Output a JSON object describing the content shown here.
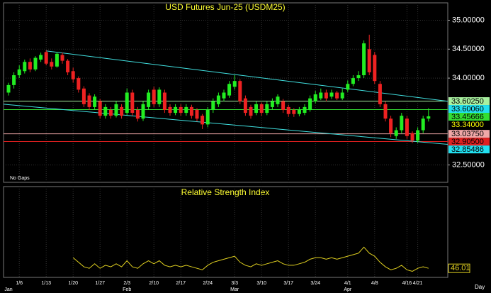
{
  "chart_data": {
    "type": "candlestick",
    "title": "USD Futures Jun-25 (USDM25)",
    "note": "No Gaps",
    "x_unit": "Day",
    "categories": [
      null,
      null,
      "1/6",
      null,
      null,
      null,
      null,
      "1/13",
      null,
      null,
      null,
      null,
      "1/20",
      null,
      null,
      null,
      null,
      "1/27",
      null,
      null,
      null,
      null,
      "2/3",
      null,
      null,
      null,
      null,
      "2/10",
      null,
      null,
      null,
      null,
      "2/17",
      null,
      null,
      null,
      null,
      "2/24",
      null,
      null,
      null,
      null,
      "3/3",
      null,
      null,
      null,
      null,
      "3/10",
      null,
      null,
      null,
      null,
      "3/17",
      null,
      null,
      null,
      null,
      "3/24",
      null,
      null,
      null,
      null,
      null,
      "4/1",
      null,
      null,
      null,
      null,
      "4/8",
      null,
      null,
      null,
      null,
      null,
      "4/16",
      null,
      "4/21",
      null,
      null
    ],
    "months": [
      "Jan",
      null,
      null,
      null,
      null,
      null,
      null,
      null,
      null,
      null,
      null,
      null,
      null,
      null,
      null,
      null,
      null,
      null,
      null,
      null,
      null,
      null,
      "Feb",
      null,
      null,
      null,
      null,
      null,
      null,
      null,
      null,
      null,
      null,
      null,
      null,
      null,
      null,
      null,
      null,
      null,
      null,
      null,
      "Mar",
      null,
      null,
      null,
      null,
      null,
      null,
      null,
      null,
      null,
      null,
      null,
      null,
      null,
      null,
      null,
      null,
      null,
      null,
      null,
      null,
      "Apr",
      null,
      null,
      null,
      null,
      null,
      null,
      null,
      null,
      null,
      null,
      null,
      null,
      null,
      null,
      null
    ],
    "up_color": "#22ee22",
    "down_color": "#ee2222",
    "ohlc": [
      [
        33.75,
        33.92,
        33.7,
        33.88
      ],
      [
        33.88,
        34.1,
        33.82,
        34.05
      ],
      [
        34.05,
        34.22,
        34.0,
        34.15
      ],
      [
        34.12,
        34.32,
        34.08,
        34.28
      ],
      [
        34.28,
        34.34,
        34.1,
        34.15
      ],
      [
        34.15,
        34.38,
        34.12,
        34.35
      ],
      [
        34.32,
        34.44,
        34.28,
        34.4
      ],
      [
        34.45,
        34.48,
        34.22,
        34.25
      ],
      [
        34.28,
        34.34,
        34.15,
        34.2
      ],
      [
        34.2,
        34.45,
        34.18,
        34.42
      ],
      [
        34.4,
        34.44,
        34.25,
        34.3
      ],
      [
        34.3,
        34.33,
        34.05,
        34.1
      ],
      [
        34.12,
        34.18,
        33.92,
        33.98
      ],
      [
        34.0,
        34.03,
        33.75,
        33.8
      ],
      [
        33.82,
        33.86,
        33.5,
        33.55
      ],
      [
        33.7,
        33.74,
        33.45,
        33.5
      ],
      [
        33.5,
        33.72,
        33.46,
        33.68
      ],
      [
        33.6,
        33.64,
        33.3,
        33.35
      ],
      [
        33.35,
        33.55,
        33.3,
        33.5
      ],
      [
        33.45,
        33.5,
        33.3,
        33.35
      ],
      [
        33.35,
        33.6,
        33.32,
        33.55
      ],
      [
        33.5,
        33.55,
        33.3,
        33.35
      ],
      [
        33.4,
        33.82,
        33.36,
        33.75
      ],
      [
        33.75,
        33.8,
        33.35,
        33.4
      ],
      [
        33.45,
        33.5,
        33.25,
        33.3
      ],
      [
        33.3,
        33.6,
        33.26,
        33.55
      ],
      [
        33.5,
        33.8,
        33.46,
        33.75
      ],
      [
        33.8,
        33.85,
        33.5,
        33.55
      ],
      [
        33.55,
        33.84,
        33.5,
        33.8
      ],
      [
        33.75,
        33.8,
        33.4,
        33.45
      ],
      [
        33.5,
        33.55,
        33.35,
        33.4
      ],
      [
        33.4,
        33.55,
        33.36,
        33.5
      ],
      [
        33.5,
        33.55,
        33.35,
        33.4
      ],
      [
        33.4,
        33.55,
        33.35,
        33.5
      ],
      [
        33.5,
        33.54,
        33.3,
        33.35
      ],
      [
        33.45,
        33.48,
        33.25,
        33.3
      ],
      [
        33.35,
        33.38,
        33.12,
        33.2
      ],
      [
        33.2,
        33.5,
        33.15,
        33.45
      ],
      [
        33.45,
        33.65,
        33.4,
        33.6
      ],
      [
        33.55,
        33.75,
        33.5,
        33.7
      ],
      [
        33.65,
        33.8,
        33.6,
        33.75
      ],
      [
        33.7,
        33.95,
        33.66,
        33.9
      ],
      [
        33.85,
        34.05,
        33.8,
        33.95
      ],
      [
        33.95,
        33.98,
        33.55,
        33.6
      ],
      [
        33.65,
        33.7,
        33.35,
        33.4
      ],
      [
        33.5,
        33.54,
        33.3,
        33.35
      ],
      [
        33.4,
        33.6,
        33.36,
        33.55
      ],
      [
        33.55,
        33.58,
        33.35,
        33.4
      ],
      [
        33.4,
        33.6,
        33.36,
        33.55
      ],
      [
        33.5,
        33.65,
        33.46,
        33.6
      ],
      [
        33.55,
        33.72,
        33.5,
        33.68
      ],
      [
        33.6,
        33.64,
        33.4,
        33.45
      ],
      [
        33.5,
        33.54,
        33.33,
        33.38
      ],
      [
        33.45,
        33.48,
        33.33,
        33.38
      ],
      [
        33.38,
        33.5,
        33.34,
        33.45
      ],
      [
        33.4,
        33.55,
        33.36,
        33.5
      ],
      [
        33.45,
        33.7,
        33.42,
        33.65
      ],
      [
        33.6,
        33.78,
        33.56,
        33.72
      ],
      [
        33.65,
        33.82,
        33.62,
        33.75
      ],
      [
        33.75,
        33.8,
        33.6,
        33.65
      ],
      [
        33.68,
        33.8,
        33.64,
        33.75
      ],
      [
        33.75,
        33.78,
        33.62,
        33.65
      ],
      [
        33.65,
        33.82,
        33.62,
        33.75
      ],
      [
        33.8,
        33.96,
        33.76,
        33.9
      ],
      [
        33.9,
        34.05,
        33.86,
        34.0
      ],
      [
        34.0,
        34.12,
        33.95,
        34.05
      ],
      [
        34.05,
        34.65,
        34.0,
        34.6
      ],
      [
        34.5,
        34.75,
        34.05,
        34.1
      ],
      [
        34.4,
        34.45,
        33.9,
        33.95
      ],
      [
        33.9,
        33.95,
        33.5,
        33.55
      ],
      [
        33.55,
        33.6,
        33.25,
        33.3
      ],
      [
        33.3,
        33.35,
        32.98,
        33.05
      ],
      [
        33.0,
        33.15,
        32.95,
        33.1
      ],
      [
        33.1,
        33.4,
        33.05,
        33.35
      ],
      [
        33.3,
        33.35,
        32.95,
        33.0
      ],
      [
        33.05,
        33.08,
        32.88,
        32.92
      ],
      [
        32.92,
        33.15,
        32.88,
        33.1
      ],
      [
        33.1,
        33.35,
        33.05,
        33.3
      ],
      [
        33.3,
        33.48,
        33.25,
        33.34
      ]
    ],
    "ylim": [
      32.2,
      35.3
    ],
    "yticks": [
      {
        "value": 32.5,
        "label": "32.50000"
      },
      {
        "value": 34,
        "label": "34.00000"
      },
      {
        "value": 34.5,
        "label": "34.50000"
      },
      {
        "value": 35,
        "label": "35.00000"
      }
    ],
    "grid": true,
    "levels": [
      {
        "value": 33.6025,
        "label": "33.60250",
        "color": "#a8f0a0",
        "text_color": "#000000",
        "line": true
      },
      {
        "value": 33.6006,
        "label": "33.60060",
        "color": "#22e0f0",
        "text_color": "#000000",
        "line": false
      },
      {
        "value": 33.45666,
        "label": "33.45666",
        "color": "#33dd33",
        "text_color": "#000000",
        "line": true
      },
      {
        "value": 33.34,
        "label": "33.34000",
        "color": "#000000",
        "text_color": "#ffff00",
        "line": false
      },
      {
        "value": 33.0375,
        "label": "33.03750",
        "color": "#f0a8a8",
        "text_color": "#000000",
        "line": true
      },
      {
        "value": 32.905,
        "label": "32.90500",
        "color": "#e02020",
        "text_color": "#000000",
        "line": true
      },
      {
        "value": 32.85486,
        "label": "32.85486",
        "color": "#22e0f0",
        "text_color": "#000000",
        "line": false
      }
    ],
    "trendlines": [
      {
        "color": "#40e0e0",
        "start_index": 7,
        "values": [
          34.47,
          33.6006
        ]
      },
      {
        "color": "#40e0e0",
        "start_index": -1,
        "values": [
          33.55,
          32.85486
        ]
      }
    ],
    "rsi": {
      "title": "Relative Strength Index",
      "color": "#e0d020",
      "ylim": [
        40,
        100
      ],
      "values": [
        null,
        null,
        null,
        null,
        null,
        null,
        null,
        null,
        null,
        null,
        null,
        null,
        53,
        50,
        47,
        46,
        49,
        46,
        48,
        47,
        49,
        47,
        51,
        47,
        46,
        49,
        51,
        49,
        51,
        48,
        47,
        48,
        47,
        48,
        47,
        46,
        45,
        48,
        50,
        51,
        52,
        53,
        54,
        50,
        48,
        47,
        49,
        48,
        49,
        50,
        51,
        49,
        48,
        48,
        49,
        50,
        52,
        53,
        53,
        52,
        53,
        52,
        53,
        54,
        55,
        56,
        60,
        56,
        54,
        50,
        47,
        45,
        46,
        48,
        45,
        44,
        46,
        47,
        46.01
      ]
    }
  }
}
